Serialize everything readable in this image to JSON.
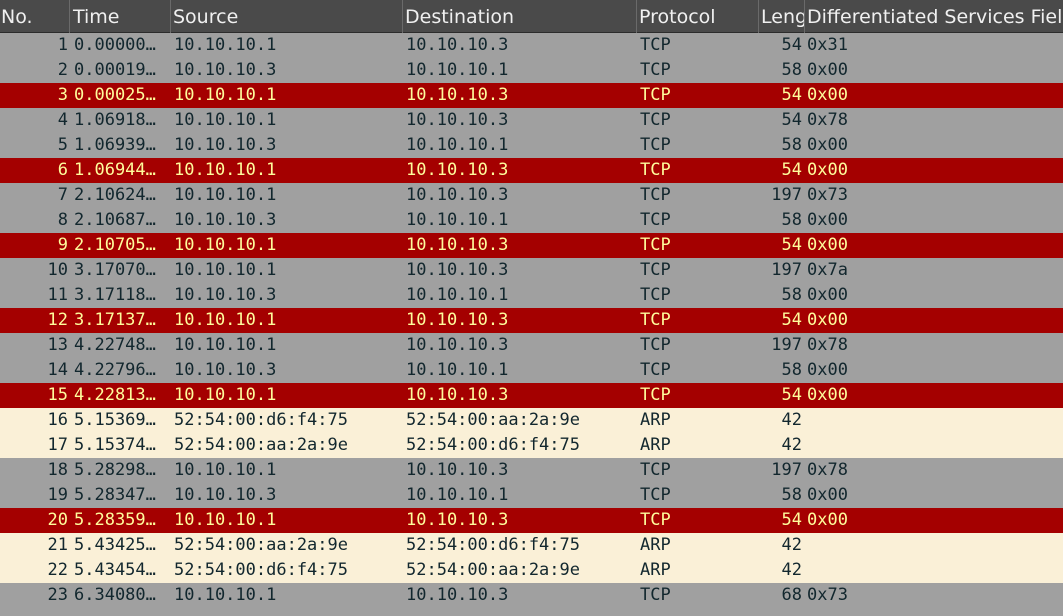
{
  "columns": {
    "no": "No.",
    "time": "Time",
    "source": "Source",
    "destination": "Destination",
    "protocol": "Protocol",
    "length": "Leng",
    "dsfield": "Differentiated Services Field"
  },
  "colors": {
    "header_bg": "#4a4a4a",
    "row_normal_bg": "#a0a0a0",
    "row_bad_tcp_bg": "#a40000",
    "row_bad_tcp_fg": "#fffc9c",
    "row_arp_bg": "#faf0d7",
    "text_dark": "#12272e"
  },
  "packets": [
    {
      "no": "1",
      "time": "0.00000…",
      "source": "10.10.10.1",
      "destination": "10.10.10.3",
      "protocol": "TCP",
      "length": "54",
      "ds": "0x31",
      "style": "normal"
    },
    {
      "no": "2",
      "time": "0.00019…",
      "source": "10.10.10.3",
      "destination": "10.10.10.1",
      "protocol": "TCP",
      "length": "58",
      "ds": "0x00",
      "style": "normal"
    },
    {
      "no": "3",
      "time": "0.00025…",
      "source": "10.10.10.1",
      "destination": "10.10.10.3",
      "protocol": "TCP",
      "length": "54",
      "ds": "0x00",
      "style": "bad"
    },
    {
      "no": "4",
      "time": "1.06918…",
      "source": "10.10.10.1",
      "destination": "10.10.10.3",
      "protocol": "TCP",
      "length": "54",
      "ds": "0x78",
      "style": "normal"
    },
    {
      "no": "5",
      "time": "1.06939…",
      "source": "10.10.10.3",
      "destination": "10.10.10.1",
      "protocol": "TCP",
      "length": "58",
      "ds": "0x00",
      "style": "normal"
    },
    {
      "no": "6",
      "time": "1.06944…",
      "source": "10.10.10.1",
      "destination": "10.10.10.3",
      "protocol": "TCP",
      "length": "54",
      "ds": "0x00",
      "style": "bad"
    },
    {
      "no": "7",
      "time": "2.10624…",
      "source": "10.10.10.1",
      "destination": "10.10.10.3",
      "protocol": "TCP",
      "length": "197",
      "ds": "0x73",
      "style": "normal"
    },
    {
      "no": "8",
      "time": "2.10687…",
      "source": "10.10.10.3",
      "destination": "10.10.10.1",
      "protocol": "TCP",
      "length": "58",
      "ds": "0x00",
      "style": "normal"
    },
    {
      "no": "9",
      "time": "2.10705…",
      "source": "10.10.10.1",
      "destination": "10.10.10.3",
      "protocol": "TCP",
      "length": "54",
      "ds": "0x00",
      "style": "bad"
    },
    {
      "no": "10",
      "time": "3.17070…",
      "source": "10.10.10.1",
      "destination": "10.10.10.3",
      "protocol": "TCP",
      "length": "197",
      "ds": "0x7a",
      "style": "normal"
    },
    {
      "no": "11",
      "time": "3.17118…",
      "source": "10.10.10.3",
      "destination": "10.10.10.1",
      "protocol": "TCP",
      "length": "58",
      "ds": "0x00",
      "style": "normal"
    },
    {
      "no": "12",
      "time": "3.17137…",
      "source": "10.10.10.1",
      "destination": "10.10.10.3",
      "protocol": "TCP",
      "length": "54",
      "ds": "0x00",
      "style": "bad"
    },
    {
      "no": "13",
      "time": "4.22748…",
      "source": "10.10.10.1",
      "destination": "10.10.10.3",
      "protocol": "TCP",
      "length": "197",
      "ds": "0x78",
      "style": "normal"
    },
    {
      "no": "14",
      "time": "4.22796…",
      "source": "10.10.10.3",
      "destination": "10.10.10.1",
      "protocol": "TCP",
      "length": "58",
      "ds": "0x00",
      "style": "normal"
    },
    {
      "no": "15",
      "time": "4.22813…",
      "source": "10.10.10.1",
      "destination": "10.10.10.3",
      "protocol": "TCP",
      "length": "54",
      "ds": "0x00",
      "style": "bad"
    },
    {
      "no": "16",
      "time": "5.15369…",
      "source": "52:54:00:d6:f4:75",
      "destination": "52:54:00:aa:2a:9e",
      "protocol": "ARP",
      "length": "42",
      "ds": "",
      "style": "arp"
    },
    {
      "no": "17",
      "time": "5.15374…",
      "source": "52:54:00:aa:2a:9e",
      "destination": "52:54:00:d6:f4:75",
      "protocol": "ARP",
      "length": "42",
      "ds": "",
      "style": "arp"
    },
    {
      "no": "18",
      "time": "5.28298…",
      "source": "10.10.10.1",
      "destination": "10.10.10.3",
      "protocol": "TCP",
      "length": "197",
      "ds": "0x78",
      "style": "normal"
    },
    {
      "no": "19",
      "time": "5.28347…",
      "source": "10.10.10.3",
      "destination": "10.10.10.1",
      "protocol": "TCP",
      "length": "58",
      "ds": "0x00",
      "style": "normal"
    },
    {
      "no": "20",
      "time": "5.28359…",
      "source": "10.10.10.1",
      "destination": "10.10.10.3",
      "protocol": "TCP",
      "length": "54",
      "ds": "0x00",
      "style": "bad"
    },
    {
      "no": "21",
      "time": "5.43425…",
      "source": "52:54:00:aa:2a:9e",
      "destination": "52:54:00:d6:f4:75",
      "protocol": "ARP",
      "length": "42",
      "ds": "",
      "style": "arp"
    },
    {
      "no": "22",
      "time": "5.43454…",
      "source": "52:54:00:d6:f4:75",
      "destination": "52:54:00:aa:2a:9e",
      "protocol": "ARP",
      "length": "42",
      "ds": "",
      "style": "arp"
    },
    {
      "no": "23",
      "time": "6.34080…",
      "source": "10.10.10.1",
      "destination": "10.10.10.3",
      "protocol": "TCP",
      "length": "68",
      "ds": "0x73",
      "style": "normal"
    }
  ]
}
